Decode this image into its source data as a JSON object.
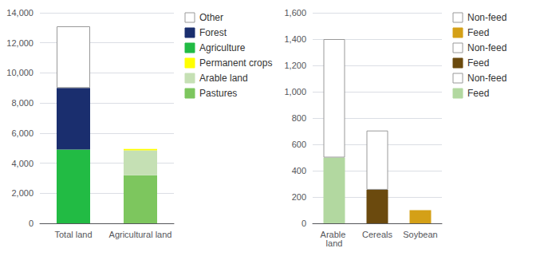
{
  "chart_data": [
    {
      "type": "bar",
      "stacked": true,
      "categories": [
        "Total land",
        "Agricultural land"
      ],
      "series": [
        {
          "name": "Pastures",
          "color": "#7dc65e",
          "values": [
            null,
            3200
          ]
        },
        {
          "name": "Arable land",
          "color": "#c5e0b4",
          "values": [
            null,
            1650
          ]
        },
        {
          "name": "Permanent crops",
          "color": "#ffff00",
          "values": [
            null,
            100
          ]
        },
        {
          "name": "Agriculture",
          "color": "#22bb44",
          "values": [
            4900,
            null
          ]
        },
        {
          "name": "Forest",
          "color": "#1a2e6e",
          "values": [
            4100,
            null
          ]
        },
        {
          "name": "Other",
          "color": "#ffffff",
          "values": [
            4100,
            null
          ]
        }
      ],
      "ylim": [
        0,
        14000
      ],
      "yticks": [
        0,
        {
          "value": 2000,
          "label": "2,000"
        },
        {
          "value": 4000,
          "label": "4,000"
        },
        {
          "value": 6000,
          "label": "6,000"
        },
        {
          "value": 8000,
          "label": "8,000"
        },
        {
          "value": 10000,
          "label": "10,000"
        },
        {
          "value": 12000,
          "label": "12,000"
        },
        {
          "value": 14000,
          "label": "14,000"
        }
      ],
      "grid": true,
      "legend": "right"
    },
    {
      "type": "bar",
      "stacked": true,
      "categories": [
        "Arable land",
        "Cereals",
        "Soybean"
      ],
      "series": [
        {
          "name": "Feed",
          "color": "#b2d8a0",
          "values": [
            500,
            null,
            null
          ]
        },
        {
          "name": "Non-feed",
          "color": "#ffffff",
          "values": [
            900,
            null,
            null
          ]
        },
        {
          "name": "Feed",
          "color": "#6b4a0e",
          "values": [
            null,
            255,
            null
          ]
        },
        {
          "name": "Non-feed",
          "color": "#ffffff",
          "values": [
            null,
            450,
            null
          ]
        },
        {
          "name": "Feed",
          "color": "#d4a017",
          "values": [
            null,
            null,
            100
          ]
        },
        {
          "name": "Non-feed",
          "color": "#ffffff",
          "values": [
            null,
            null,
            null
          ]
        }
      ],
      "ylim": [
        0,
        1600
      ],
      "yticks": [
        0,
        200,
        400,
        600,
        800,
        {
          "value": 1000,
          "label": "1,000"
        },
        {
          "value": 1200,
          "label": "1,200"
        },
        {
          "value": 1400,
          "label": "1,400"
        },
        {
          "value": 1600,
          "label": "1,600"
        }
      ],
      "grid": true,
      "legend": "right"
    }
  ]
}
